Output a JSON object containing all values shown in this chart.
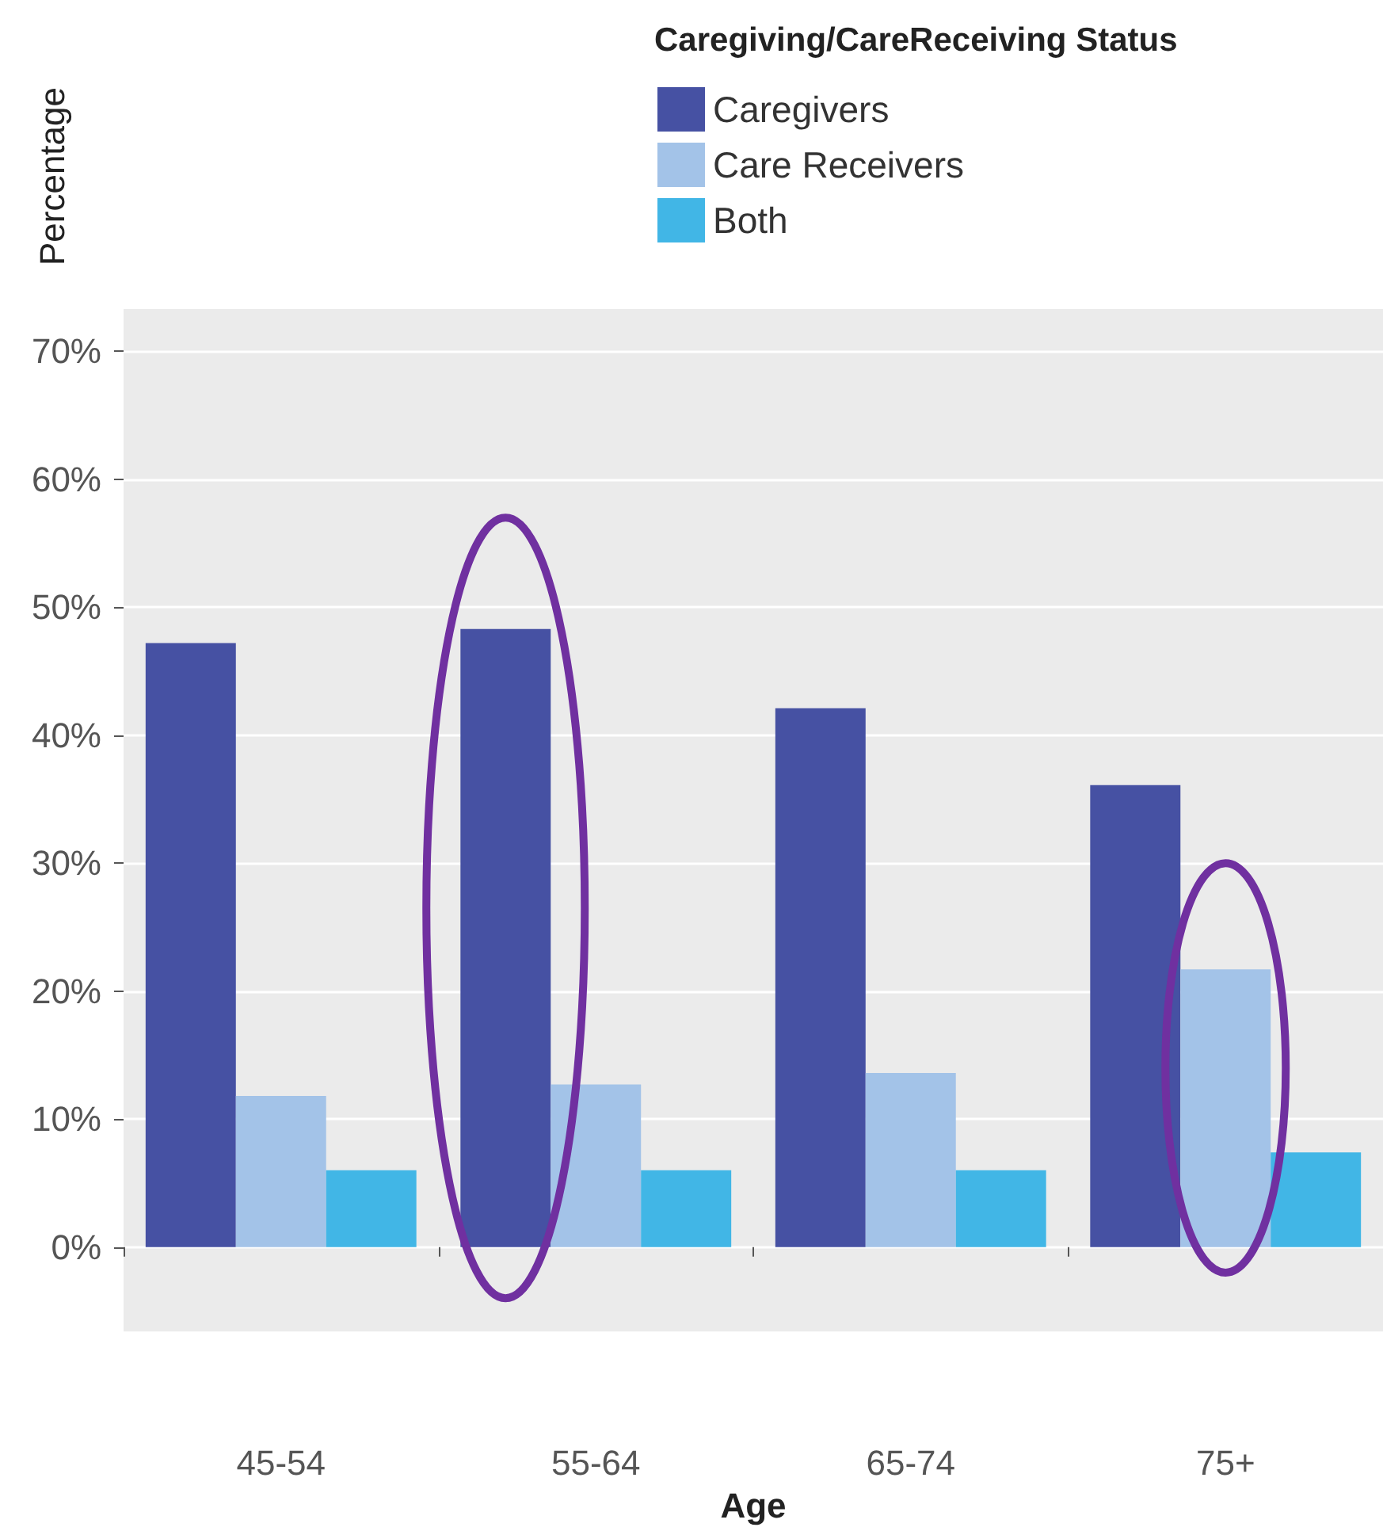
{
  "chart_data": {
    "type": "bar",
    "xlabel": "Age",
    "ylabel": "Percentage",
    "legend_title": "Caregiving/CareReceiving Status",
    "categories": [
      "45-54",
      "55-64",
      "65-74",
      "75+"
    ],
    "series": [
      {
        "name": "Caregivers",
        "color": "#4651a3",
        "values": [
          47.2,
          48.3,
          42.1,
          36.1
        ]
      },
      {
        "name": "Care Receivers",
        "color": "#a3c3e8",
        "values": [
          11.8,
          12.7,
          13.6,
          21.7
        ]
      },
      {
        "name": "Both",
        "color": "#41b6e6",
        "values": [
          6,
          6,
          6,
          7.4
        ]
      }
    ],
    "ylim": [
      -6.6,
      73.3
    ],
    "yticks": [
      {
        "value": 0,
        "label": "0%"
      },
      {
        "value": 10,
        "label": "10%"
      },
      {
        "value": 20,
        "label": "20%"
      },
      {
        "value": 30,
        "label": "30%"
      },
      {
        "value": 40,
        "label": "40%"
      },
      {
        "value": 50,
        "label": "50%"
      },
      {
        "value": 60,
        "label": "60%"
      },
      {
        "value": 70,
        "label": "70%"
      }
    ],
    "grid": "y",
    "legend": "top right"
  }
}
